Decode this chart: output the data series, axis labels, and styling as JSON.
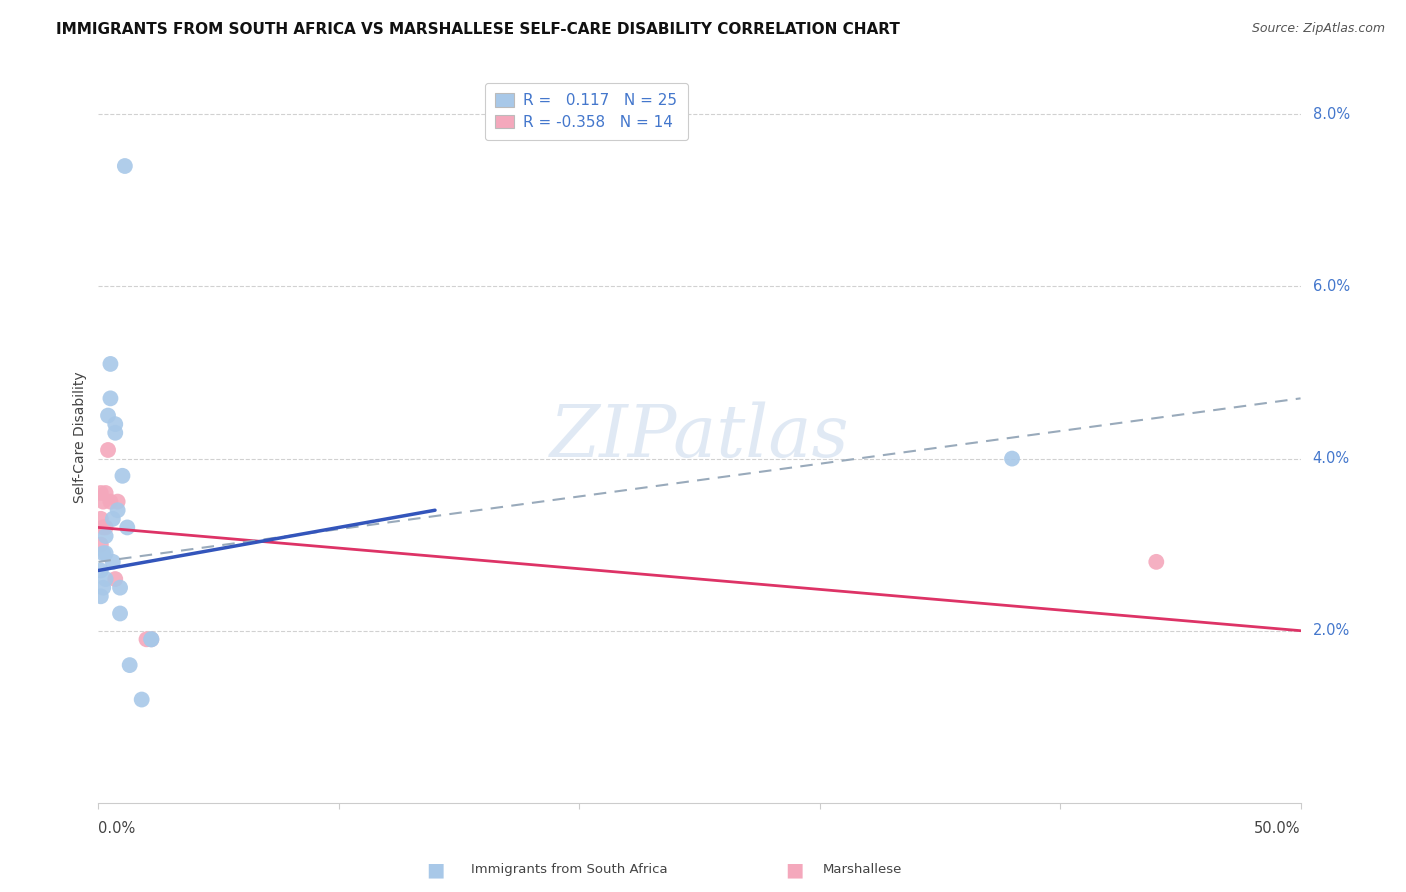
{
  "title": "IMMIGRANTS FROM SOUTH AFRICA VS MARSHALLESE SELF-CARE DISABILITY CORRELATION CHART",
  "source": "Source: ZipAtlas.com",
  "ylabel": "Self-Care Disability",
  "xlim": [
    0.0,
    0.5
  ],
  "ylim": [
    -0.005,
    0.088
  ],
  "plot_ylim": [
    0.0,
    0.085
  ],
  "yticks": [
    0.02,
    0.04,
    0.06,
    0.08
  ],
  "ytick_labels": [
    "2.0%",
    "4.0%",
    "6.0%",
    "8.0%"
  ],
  "xticks": [
    0.0,
    0.1,
    0.2,
    0.3,
    0.4,
    0.5
  ],
  "blue_scatter_x": [
    0.001,
    0.001,
    0.002,
    0.002,
    0.003,
    0.003,
    0.003,
    0.004,
    0.005,
    0.005,
    0.006,
    0.006,
    0.007,
    0.007,
    0.008,
    0.009,
    0.009,
    0.01,
    0.011,
    0.012,
    0.013,
    0.018,
    0.022,
    0.022,
    0.38
  ],
  "blue_scatter_y": [
    0.027,
    0.024,
    0.029,
    0.025,
    0.031,
    0.029,
    0.026,
    0.045,
    0.051,
    0.047,
    0.033,
    0.028,
    0.044,
    0.043,
    0.034,
    0.025,
    0.022,
    0.038,
    0.074,
    0.032,
    0.016,
    0.012,
    0.019,
    0.019,
    0.04
  ],
  "pink_scatter_x": [
    0.001,
    0.001,
    0.001,
    0.002,
    0.002,
    0.003,
    0.003,
    0.004,
    0.005,
    0.007,
    0.008,
    0.02,
    0.022,
    0.44
  ],
  "pink_scatter_y": [
    0.036,
    0.033,
    0.03,
    0.035,
    0.032,
    0.036,
    0.032,
    0.041,
    0.035,
    0.026,
    0.035,
    0.019,
    0.019,
    0.028
  ],
  "blue_line_x0": 0.0,
  "blue_line_x1": 0.14,
  "blue_line_y0": 0.027,
  "blue_line_y1": 0.034,
  "pink_line_x0": 0.0,
  "pink_line_x1": 0.5,
  "pink_line_y0": 0.032,
  "pink_line_y1": 0.02,
  "dashed_line_x0": 0.0,
  "dashed_line_x1": 0.5,
  "dashed_line_y0": 0.028,
  "dashed_line_y1": 0.047,
  "watermark": "ZIPatlas",
  "background_color": "#ffffff",
  "blue_color": "#a8c8e8",
  "pink_color": "#f4a8bc",
  "blue_line_color": "#3355bb",
  "pink_line_color": "#dd3366",
  "dashed_line_color": "#99aabb",
  "right_label_color": "#4477cc",
  "title_fontsize": 11,
  "axis_label_fontsize": 10,
  "tick_fontsize": 10.5,
  "legend_fontsize": 11,
  "scatter_size": 130
}
